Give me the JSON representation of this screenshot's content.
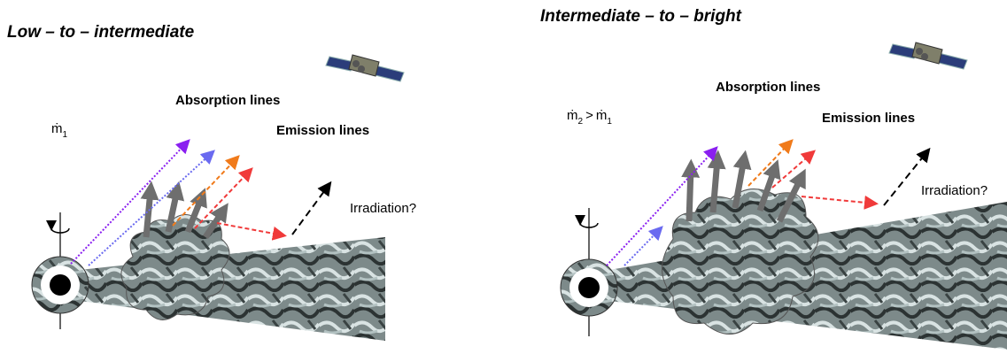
{
  "left_panel": {
    "title": "Low – to – intermediate",
    "absorption_label": "Absorption lines",
    "emission_label": "Emission lines",
    "rate_label": {
      "symbol": "ṁ",
      "sub": "1"
    },
    "irradiation_label": "Irradiation?"
  },
  "right_panel": {
    "title": "Intermediate – to – bright",
    "absorption_label": "Absorption lines",
    "emission_label": "Emission lines",
    "rate_label": {
      "lhs_symbol": "ṁ",
      "lhs_sub": "2",
      "op": ">",
      "rhs_symbol": "ṁ",
      "rhs_sub": "1"
    },
    "irradiation_label": "Irradiation?"
  }
}
